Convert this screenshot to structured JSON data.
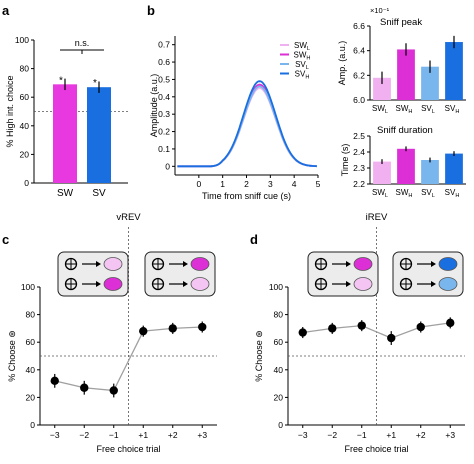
{
  "colors": {
    "SW": "#e838e0",
    "SV": "#1a6fe0",
    "SW_L": "#f1b0ef",
    "SW_H": "#dd2fd6",
    "SV_L": "#79b6ee",
    "SV_H": "#1a6fe0",
    "grey": "#a0a0a0",
    "black": "#000000"
  },
  "panels": [
    "a",
    "b",
    "c",
    "d"
  ],
  "chart_data": [
    {
      "id": "a",
      "type": "bar",
      "categories": [
        "SW",
        "SV"
      ],
      "values": [
        69,
        67
      ],
      "errors": [
        4,
        4
      ],
      "ylabel": "% High int. choice",
      "ylim": [
        0,
        100
      ],
      "yticks": [
        "0",
        "20",
        "40",
        "60",
        "80",
        "100"
      ],
      "reference_line": 50,
      "significance": "n.s.",
      "star": "*"
    },
    {
      "id": "b-main",
      "type": "line",
      "xlabel": "Time from sniff cue (s)",
      "ylabel": "Amplitude (a.u.)",
      "xlim": [
        -1,
        5
      ],
      "ylim": [
        -0.05,
        0.75
      ],
      "xticks": [
        "0",
        "1",
        "2",
        "3",
        "4",
        "5"
      ],
      "yticks": [
        "0",
        "0.1",
        "0.2",
        "0.3",
        "0.4",
        "0.5",
        "0.6",
        "0.7"
      ],
      "legend": [
        {
          "base": "SW",
          "sub": "L"
        },
        {
          "base": "SW",
          "sub": "H"
        },
        {
          "base": "SV",
          "sub": "L"
        },
        {
          "base": "SV",
          "sub": "H"
        }
      ],
      "series": [
        {
          "name": "SW_L",
          "peak": 0.45
        },
        {
          "name": "SW_H",
          "peak": 0.47
        },
        {
          "name": "SV_L",
          "peak": 0.46
        },
        {
          "name": "SV_H",
          "peak": 0.49
        }
      ]
    },
    {
      "id": "b-peak",
      "type": "bar",
      "title": "Sniff peak",
      "ylabel": "Amp. (a.u.)",
      "exponent_label": "×10⁻¹",
      "ylim": [
        6.0,
        6.6
      ],
      "yticks": [
        "6.0",
        "6.2",
        "6.4",
        "6.6"
      ],
      "categories": [
        {
          "base": "SW",
          "sub": "L"
        },
        {
          "base": "SW",
          "sub": "H"
        },
        {
          "base": "SV",
          "sub": "L"
        },
        {
          "base": "SV",
          "sub": "H"
        }
      ],
      "values": [
        6.18,
        6.41,
        6.27,
        6.47
      ],
      "errors": [
        0.05,
        0.05,
        0.05,
        0.05
      ]
    },
    {
      "id": "b-duration",
      "type": "bar",
      "title": "Sniff duration",
      "ylabel": "Time (s)",
      "ylim": [
        2.2,
        2.5
      ],
      "yticks": [
        "2.2",
        "2.3",
        "2.4",
        "2.5"
      ],
      "categories": [
        {
          "base": "SW",
          "sub": "L"
        },
        {
          "base": "SW",
          "sub": "H"
        },
        {
          "base": "SV",
          "sub": "L"
        },
        {
          "base": "SV",
          "sub": "H"
        }
      ],
      "values": [
        2.34,
        2.42,
        2.35,
        2.39
      ],
      "errors": [
        0.015,
        0.015,
        0.015,
        0.015
      ]
    },
    {
      "id": "c",
      "type": "line",
      "title": "vREV",
      "xlabel": "Free choice trial",
      "ylabel": "% Choose",
      "ylabel_icon": "⊛",
      "ylim": [
        0,
        100
      ],
      "yticks": [
        "0",
        "20",
        "40",
        "60",
        "80",
        "100"
      ],
      "x": [
        "−3",
        "−2",
        "−1",
        "+1",
        "+2",
        "+3"
      ],
      "values": [
        32,
        27,
        25,
        68,
        70,
        71
      ],
      "errors": [
        5,
        5,
        5,
        4,
        4,
        4
      ],
      "reference_line": 50
    },
    {
      "id": "d",
      "type": "line",
      "title": "iREV",
      "xlabel": "Free choice trial",
      "ylabel": "% Choose",
      "ylabel_icon": "⊛",
      "ylim": [
        0,
        100
      ],
      "yticks": [
        "0",
        "20",
        "40",
        "60",
        "80",
        "100"
      ],
      "x": [
        "−3",
        "−2",
        "−1",
        "+1",
        "+2",
        "+3"
      ],
      "values": [
        67,
        70,
        72,
        63,
        71,
        74
      ],
      "errors": [
        4,
        4,
        4,
        5,
        4,
        4
      ],
      "reference_line": 50
    }
  ]
}
